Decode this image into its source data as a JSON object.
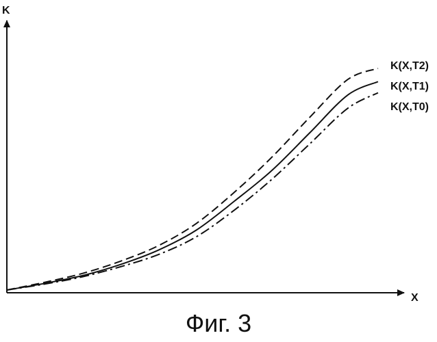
{
  "caption": "Фиг. 3",
  "chart_data": {
    "type": "line",
    "xlabel": "X",
    "ylabel": "K",
    "grid": false,
    "xlim": [
      0,
      100
    ],
    "ylim": [
      0,
      100
    ],
    "series": [
      {
        "name": "K(X,T2)",
        "style": "dashed",
        "x": [
          0,
          10,
          20,
          30,
          40,
          50,
          60,
          70,
          80,
          90,
          98
        ],
        "y": [
          0,
          3.5,
          7.5,
          13,
          20,
          30,
          44,
          60,
          78,
          95,
          100
        ]
      },
      {
        "name": "K(X,T1)",
        "style": "solid",
        "x": [
          0,
          10,
          20,
          30,
          40,
          50,
          60,
          70,
          80,
          90,
          98
        ],
        "y": [
          0,
          3,
          6.5,
          11.5,
          18,
          27,
          40,
          54,
          71,
          88,
          94
        ]
      },
      {
        "name": "K(X,T0)",
        "style": "dashdot",
        "x": [
          0,
          10,
          20,
          30,
          40,
          50,
          60,
          70,
          80,
          90,
          98
        ],
        "y": [
          0,
          2.7,
          6,
          10.5,
          16,
          24,
          36,
          50,
          66,
          82,
          89
        ]
      }
    ]
  }
}
